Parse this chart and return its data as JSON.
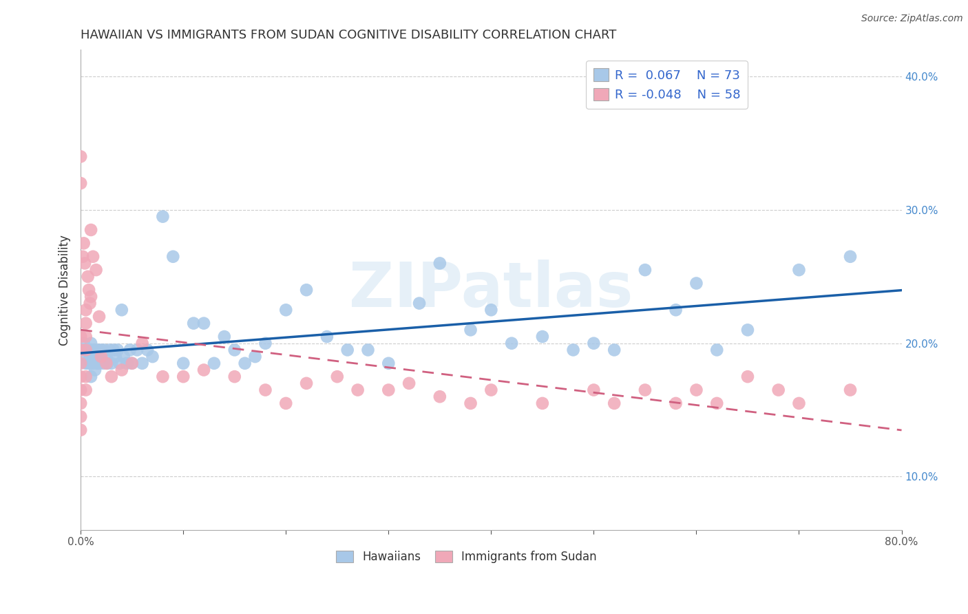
{
  "title": "HAWAIIAN VS IMMIGRANTS FROM SUDAN COGNITIVE DISABILITY CORRELATION CHART",
  "source": "Source: ZipAtlas.com",
  "ylabel": "Cognitive Disability",
  "xlim": [
    0.0,
    0.8
  ],
  "ylim": [
    0.06,
    0.42
  ],
  "ytick_positions": [
    0.1,
    0.2,
    0.3,
    0.4
  ],
  "ytick_labels": [
    "10.0%",
    "20.0%",
    "30.0%",
    "40.0%"
  ],
  "xtick_positions": [
    0.0,
    0.1,
    0.2,
    0.3,
    0.4,
    0.5,
    0.6,
    0.7,
    0.8
  ],
  "xtick_labels": [
    "0.0%",
    "",
    "",
    "",
    "",
    "",
    "",
    "",
    "80.0%"
  ],
  "watermark": "ZIPatlas",
  "legend_line1": "R =  0.067    N = 73",
  "legend_line2": "R = -0.048    N = 58",
  "hawaiian_color": "#a8c8e8",
  "sudan_color": "#f0a8b8",
  "hawaiian_line_color": "#1a5fa8",
  "sudan_line_color": "#d06080",
  "background_color": "#ffffff",
  "grid_color": "#cccccc",
  "hawaiian_x": [
    0.003,
    0.004,
    0.005,
    0.006,
    0.007,
    0.008,
    0.009,
    0.01,
    0.01,
    0.01,
    0.01,
    0.01,
    0.012,
    0.013,
    0.014,
    0.015,
    0.016,
    0.017,
    0.018,
    0.019,
    0.02,
    0.022,
    0.023,
    0.025,
    0.026,
    0.028,
    0.03,
    0.032,
    0.034,
    0.036,
    0.038,
    0.04,
    0.042,
    0.045,
    0.048,
    0.05,
    0.055,
    0.06,
    0.065,
    0.07,
    0.08,
    0.09,
    0.1,
    0.11,
    0.12,
    0.13,
    0.14,
    0.15,
    0.16,
    0.17,
    0.18,
    0.2,
    0.22,
    0.24,
    0.26,
    0.28,
    0.3,
    0.33,
    0.35,
    0.38,
    0.4,
    0.42,
    0.45,
    0.48,
    0.5,
    0.52,
    0.55,
    0.58,
    0.6,
    0.62,
    0.65,
    0.7,
    0.75
  ],
  "hawaiian_y": [
    0.2,
    0.195,
    0.185,
    0.19,
    0.185,
    0.195,
    0.19,
    0.185,
    0.195,
    0.2,
    0.175,
    0.19,
    0.185,
    0.195,
    0.18,
    0.19,
    0.185,
    0.195,
    0.185,
    0.19,
    0.195,
    0.185,
    0.195,
    0.19,
    0.185,
    0.195,
    0.185,
    0.195,
    0.19,
    0.195,
    0.185,
    0.225,
    0.19,
    0.185,
    0.195,
    0.185,
    0.195,
    0.185,
    0.195,
    0.19,
    0.295,
    0.265,
    0.185,
    0.215,
    0.215,
    0.185,
    0.205,
    0.195,
    0.185,
    0.19,
    0.2,
    0.225,
    0.24,
    0.205,
    0.195,
    0.195,
    0.185,
    0.23,
    0.26,
    0.21,
    0.225,
    0.2,
    0.205,
    0.195,
    0.2,
    0.195,
    0.255,
    0.225,
    0.245,
    0.195,
    0.21,
    0.255,
    0.265
  ],
  "sudan_x": [
    0.0,
    0.0,
    0.0,
    0.0,
    0.0,
    0.0,
    0.0,
    0.0,
    0.0,
    0.0,
    0.002,
    0.003,
    0.004,
    0.005,
    0.005,
    0.005,
    0.005,
    0.005,
    0.005,
    0.007,
    0.008,
    0.009,
    0.01,
    0.01,
    0.012,
    0.015,
    0.018,
    0.02,
    0.025,
    0.03,
    0.04,
    0.05,
    0.06,
    0.08,
    0.1,
    0.12,
    0.15,
    0.18,
    0.2,
    0.22,
    0.25,
    0.27,
    0.3,
    0.32,
    0.35,
    0.38,
    0.4,
    0.45,
    0.5,
    0.52,
    0.55,
    0.58,
    0.6,
    0.62,
    0.65,
    0.68,
    0.7,
    0.75
  ],
  "sudan_y": [
    0.205,
    0.195,
    0.185,
    0.175,
    0.165,
    0.155,
    0.145,
    0.135,
    0.34,
    0.32,
    0.265,
    0.275,
    0.26,
    0.225,
    0.215,
    0.205,
    0.195,
    0.175,
    0.165,
    0.25,
    0.24,
    0.23,
    0.285,
    0.235,
    0.265,
    0.255,
    0.22,
    0.19,
    0.185,
    0.175,
    0.18,
    0.185,
    0.2,
    0.175,
    0.175,
    0.18,
    0.175,
    0.165,
    0.155,
    0.17,
    0.175,
    0.165,
    0.165,
    0.17,
    0.16,
    0.155,
    0.165,
    0.155,
    0.165,
    0.155,
    0.165,
    0.155,
    0.165,
    0.155,
    0.175,
    0.165,
    0.155,
    0.165
  ],
  "title_fontsize": 13,
  "tick_fontsize": 11,
  "ylabel_fontsize": 12
}
